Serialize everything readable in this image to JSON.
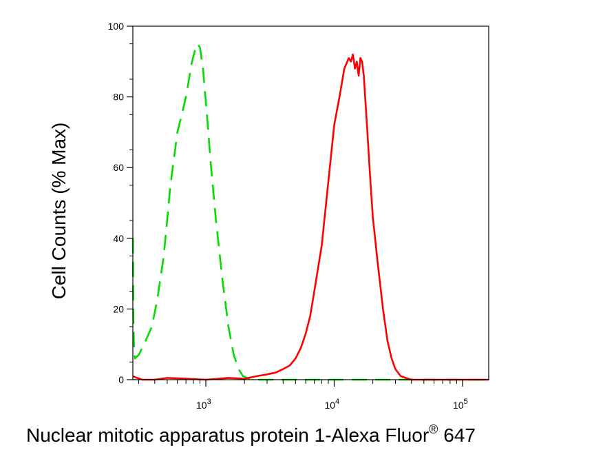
{
  "chart_data": {
    "type": "line",
    "title": "",
    "xlabel": "Nuclear mitotic apparatus protein 1-Alexa Fluor",
    "xlabel_superscript": "®",
    "xlabel_suffix": " 647",
    "ylabel": "Cell Counts (% Max)",
    "x_scale": "log",
    "xlim": [
      270,
      160000
    ],
    "ylim": [
      0,
      100
    ],
    "grid": false,
    "legend": "none",
    "y_ticks": [
      0,
      20,
      40,
      60,
      80,
      100
    ],
    "y_tick_labels": [
      "0",
      "20",
      "40",
      "60",
      "80",
      "100"
    ],
    "x_major_ticks": [
      1000,
      10000,
      100000
    ],
    "x_tick_labels": [
      {
        "base": "10",
        "exp": "3"
      },
      {
        "base": "10",
        "exp": "4"
      },
      {
        "base": "10",
        "exp": "5"
      }
    ],
    "series": [
      {
        "color": "#00dd00",
        "dash": "dashed",
        "x": [
          270,
          272,
          275,
          280,
          300,
          330,
          380,
          420,
          470,
          530,
          600,
          650,
          700,
          740,
          780,
          820,
          860,
          900,
          950,
          1020,
          1100,
          1200,
          1350,
          1500,
          1650,
          1800,
          1950,
          2100,
          2300,
          2600,
          3000,
          5000,
          10000,
          30000,
          100000,
          160000
        ],
        "y": [
          40,
          20,
          10,
          6,
          7,
          10,
          15,
          23,
          35,
          55,
          70,
          75,
          80,
          85,
          90,
          93,
          95,
          94,
          88,
          75,
          60,
          45,
          28,
          15,
          7,
          3,
          1,
          0.5,
          0,
          0,
          0,
          0,
          0,
          0,
          0,
          0
        ]
      },
      {
        "color": "#ff0000",
        "dash": "solid",
        "x": [
          270,
          290,
          320,
          350,
          400,
          500,
          700,
          1000,
          1500,
          2000,
          2500,
          3000,
          3500,
          4000,
          4500,
          5000,
          5500,
          6000,
          6500,
          7000,
          8000,
          9000,
          10000,
          11000,
          12000,
          13000,
          13500,
          14000,
          14500,
          15000,
          15500,
          16000,
          16500,
          17000,
          18000,
          19000,
          20000,
          22000,
          24000,
          26000,
          28000,
          30000,
          33000,
          36000,
          40000,
          45000,
          50000,
          60000,
          80000,
          100000,
          160000
        ],
        "y": [
          1,
          0.5,
          0,
          0,
          0,
          0.5,
          0.3,
          0,
          0.5,
          0.3,
          1,
          1.5,
          2,
          3,
          4,
          6,
          9,
          13,
          18,
          25,
          38,
          56,
          72,
          80,
          88,
          91,
          90,
          92,
          88,
          90,
          86,
          91,
          90,
          86,
          72,
          58,
          46,
          32,
          20,
          11,
          6,
          3,
          1,
          0.5,
          0,
          0,
          0,
          0,
          0,
          0,
          0
        ]
      }
    ]
  }
}
